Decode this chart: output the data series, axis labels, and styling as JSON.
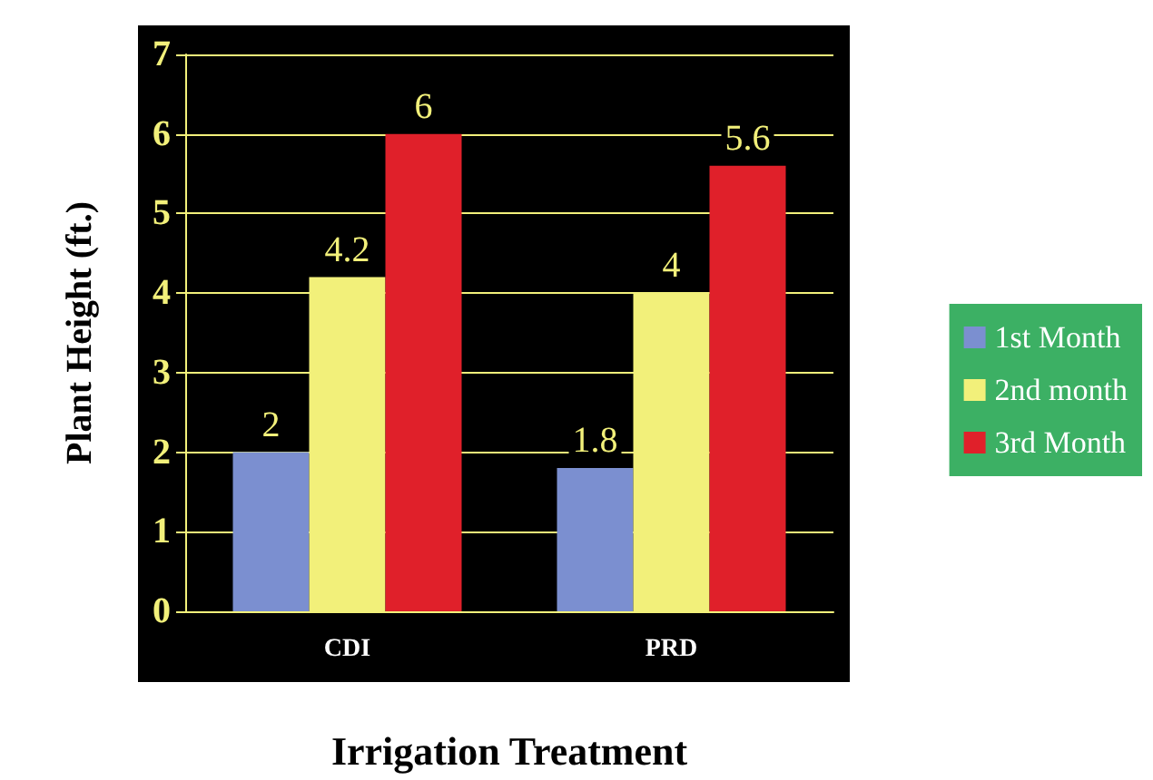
{
  "chart_data": {
    "type": "bar",
    "xlabel": "Irrigation Treatment",
    "ylabel": "Plant Height (ft.)",
    "categories": [
      "CDI",
      "PRD"
    ],
    "series": [
      {
        "name": "1st Month",
        "color": "#7b8fd0",
        "values": [
          2,
          1.8
        ]
      },
      {
        "name": "2nd month",
        "color": "#f2f07a",
        "values": [
          4.2,
          4
        ]
      },
      {
        "name": "3rd Month",
        "color": "#e0202a",
        "values": [
          6,
          5.6
        ]
      }
    ],
    "ylim": [
      0,
      7
    ],
    "yticks": [
      0,
      1,
      2,
      3,
      4,
      5,
      6,
      7
    ],
    "grid": "y",
    "legend": "right",
    "data_labels": true
  }
}
